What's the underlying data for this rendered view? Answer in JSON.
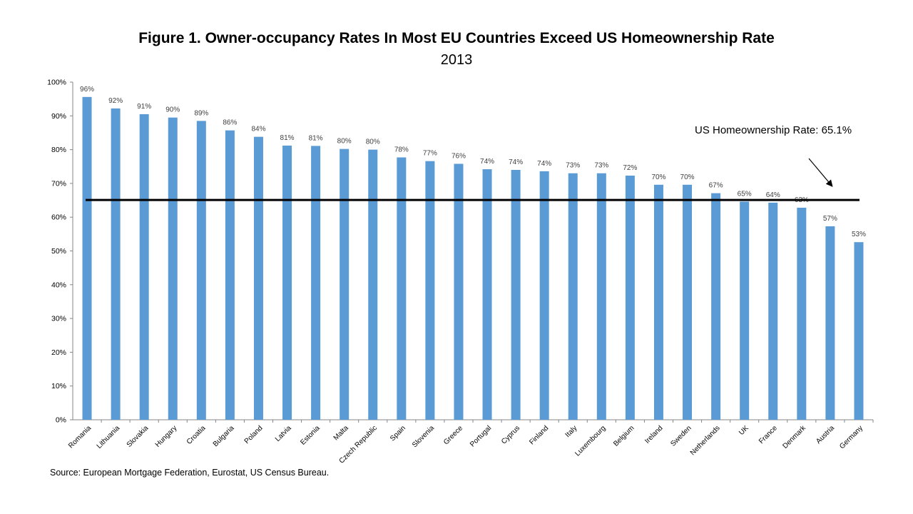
{
  "chart_data": {
    "type": "bar",
    "title": "Figure 1. Owner-occupancy Rates In Most EU Countries Exceed US Homeownership Rate",
    "subtitle": "2013",
    "categories": [
      "Romania",
      "Lithuania",
      "Slovakia",
      "Hungary",
      "Croatia",
      "Bulgaria",
      "Poland",
      "Latvia",
      "Estonia",
      "Malta",
      "Czech Republic",
      "Spain",
      "Slovenia",
      "Greece",
      "Portugal",
      "Cyprus",
      "Finland",
      "Italy",
      "Luxembourg",
      "Belgium",
      "Ireland",
      "Sweden",
      "Netherlands",
      "UK",
      "France",
      "Denmark",
      "Austria",
      "Germany"
    ],
    "values": [
      95.6,
      92.2,
      90.5,
      89.5,
      88.5,
      85.7,
      83.8,
      81.2,
      81.1,
      80.2,
      80.0,
      77.7,
      76.6,
      75.8,
      74.2,
      74.0,
      73.6,
      73.0,
      73.0,
      72.3,
      69.6,
      69.6,
      67.1,
      64.6,
      64.3,
      62.8,
      57.3,
      52.6
    ],
    "data_labels": [
      "96%",
      "92%",
      "91%",
      "90%",
      "89%",
      "86%",
      "84%",
      "81%",
      "81%",
      "80%",
      "80%",
      "78%",
      "77%",
      "76%",
      "74%",
      "74%",
      "74%",
      "73%",
      "73%",
      "72%",
      "70%",
      "70%",
      "67%",
      "65%",
      "64%",
      "63%",
      "57%",
      "53%"
    ],
    "ylim": [
      0,
      100
    ],
    "yticks": [
      "0%",
      "10%",
      "20%",
      "30%",
      "40%",
      "50%",
      "60%",
      "70%",
      "80%",
      "90%",
      "100%"
    ],
    "xlabel": "",
    "ylabel": "",
    "bar_color": "#5b9bd5",
    "reference_line": {
      "value": 65.1,
      "label": "US Homeownership Rate: 65.1%",
      "color": "#000000"
    },
    "grid": false
  },
  "source": "Source: European Mortgage Federation, Eurostat, US Census Bureau."
}
